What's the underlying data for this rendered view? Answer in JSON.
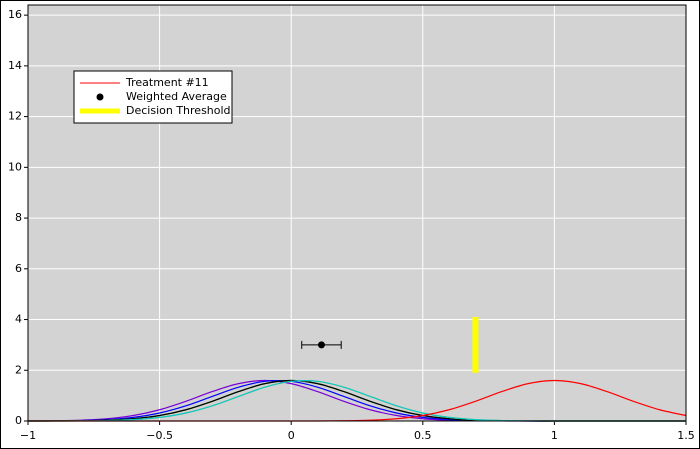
{
  "chart_data": {
    "type": "line",
    "x": [
      -1,
      -0.9,
      -0.8,
      -0.7,
      -0.6,
      -0.5,
      -0.4,
      -0.3,
      -0.2,
      -0.1,
      0,
      0.1,
      0.2,
      0.3,
      0.4,
      0.5,
      0.6,
      0.7,
      0.8,
      0.9,
      1,
      1.1,
      1.2,
      1.3,
      1.4,
      1.5
    ],
    "series": [
      {
        "color": "#7a00d6",
        "values": [
          0.002,
          0.01,
          0.032,
          0.09,
          0.216,
          0.444,
          0.777,
          1.159,
          1.473,
          1.596,
          1.473,
          1.159,
          0.777,
          0.444,
          0.216,
          0.09,
          0.032,
          0.01,
          0.002,
          0,
          0,
          0,
          0,
          0,
          0,
          0
        ]
      },
      {
        "color": "#0000ff",
        "values": [
          0.001,
          0.005,
          0.018,
          0.054,
          0.142,
          0.316,
          0.599,
          0.968,
          1.333,
          1.564,
          1.564,
          1.333,
          0.968,
          0.599,
          0.316,
          0.142,
          0.054,
          0.018,
          0.005,
          0.001,
          0,
          0,
          0,
          0,
          0,
          0
        ]
      },
      {
        "color": "#008000",
        "values": [
          0,
          0.002,
          0.01,
          0.032,
          0.09,
          0.216,
          0.444,
          0.777,
          1.159,
          1.473,
          1.596,
          1.473,
          1.159,
          0.777,
          0.444,
          0.216,
          0.09,
          0.032,
          0.01,
          0.002,
          0,
          0,
          0,
          0,
          0,
          0
        ]
      },
      {
        "color": "#000000",
        "values": [
          0,
          0.002,
          0.01,
          0.032,
          0.09,
          0.216,
          0.444,
          0.777,
          1.159,
          1.473,
          1.596,
          1.473,
          1.159,
          0.777,
          0.444,
          0.216,
          0.09,
          0.032,
          0.01,
          0.002,
          0,
          0,
          0,
          0,
          0,
          0
        ]
      },
      {
        "color": "#ff9900",
        "values": [
          0,
          0.001,
          0.005,
          0.018,
          0.054,
          0.142,
          0.316,
          0.599,
          0.968,
          1.333,
          1.564,
          1.564,
          1.333,
          0.968,
          0.599,
          0.316,
          0.142,
          0.054,
          0.018,
          0.005,
          0.001,
          0,
          0,
          0,
          0,
          0
        ]
      },
      {
        "color": "#00cccc",
        "values": [
          0,
          0.001,
          0.005,
          0.018,
          0.054,
          0.142,
          0.316,
          0.599,
          0.968,
          1.333,
          1.564,
          1.564,
          1.333,
          0.968,
          0.599,
          0.316,
          0.142,
          0.054,
          0.018,
          0.005,
          0.001,
          0,
          0,
          0,
          0,
          0
        ]
      },
      {
        "name": "Treatment #11",
        "color": "#ff0000",
        "values": [
          0,
          0,
          0,
          0,
          0,
          0,
          0,
          0,
          0,
          0,
          0,
          0,
          0.01,
          0.032,
          0.09,
          0.216,
          0.444,
          0.777,
          1.159,
          1.473,
          1.596,
          1.473,
          1.159,
          0.777,
          0.444,
          0.216
        ]
      }
    ],
    "weighted_average": {
      "name": "Weighted Average",
      "x": 0.115,
      "y": 3.0,
      "xerr": 0.075,
      "color": "#000000"
    },
    "threshold": {
      "name": "Decision Threshold",
      "x": 0.7,
      "y": [
        1.9,
        4.1
      ],
      "color": "#ffff00"
    },
    "xlim": [
      -1,
      1.5
    ],
    "xticks": [
      {
        "value": -1,
        "label": "−1"
      },
      {
        "value": -0.5,
        "label": "−0.5"
      },
      0,
      0.5,
      1,
      1.5
    ],
    "ylim": [
      0,
      16.4
    ],
    "yticks": [
      0,
      2,
      4,
      6,
      8,
      10,
      12,
      14,
      16
    ],
    "grid": true,
    "background": "#d3d3d3"
  }
}
